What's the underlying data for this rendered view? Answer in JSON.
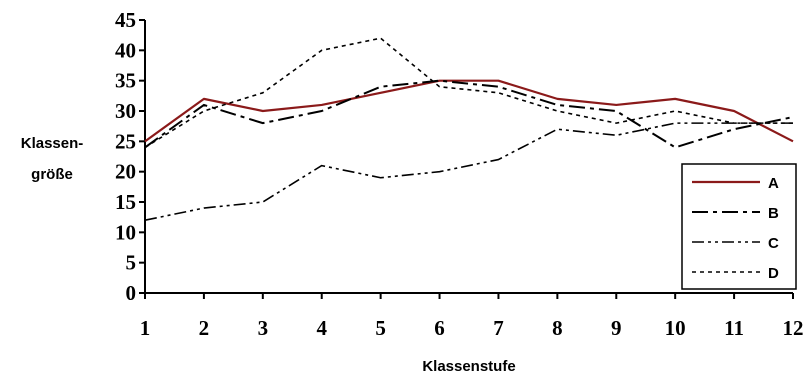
{
  "chart_data": {
    "type": "line",
    "xlabel": "Klassenstufe",
    "ylabel_lines": [
      "Klassen-",
      "größe"
    ],
    "x": [
      1,
      2,
      3,
      4,
      5,
      6,
      7,
      8,
      9,
      10,
      11,
      12
    ],
    "x_tick_labels": [
      "1",
      "2",
      "3",
      "4",
      "5",
      "6",
      "7",
      "8",
      "9",
      "10",
      "11",
      "12"
    ],
    "ylim": [
      0,
      45
    ],
    "y_ticks": [
      0,
      5,
      10,
      15,
      20,
      25,
      30,
      35,
      40,
      45
    ],
    "y_tick_labels": [
      "0",
      "5",
      "10",
      "15",
      "20",
      "25",
      "30",
      "35",
      "40",
      "45"
    ],
    "grid": false,
    "legend_position": "bottom-right",
    "series": [
      {
        "name": "A",
        "color": "#8b1a1a",
        "dash": "solid",
        "values": [
          25,
          32,
          30,
          31,
          33,
          35,
          35,
          32,
          31,
          32,
          30,
          25
        ]
      },
      {
        "name": "B",
        "color": "#000000",
        "dash": "longdash-dot",
        "values": [
          24,
          31,
          28,
          30,
          34,
          35,
          34,
          31,
          30,
          24,
          27,
          29
        ]
      },
      {
        "name": "C",
        "color": "#000000",
        "dash": "dash-dot-dot",
        "values": [
          12,
          14,
          15,
          21,
          19,
          20,
          22,
          27,
          26,
          28,
          28,
          28
        ]
      },
      {
        "name": "D",
        "color": "#000000",
        "dash": "dotted",
        "values": [
          24,
          30,
          33,
          40,
          42,
          34,
          33,
          30,
          28,
          30,
          28,
          28
        ]
      }
    ]
  }
}
